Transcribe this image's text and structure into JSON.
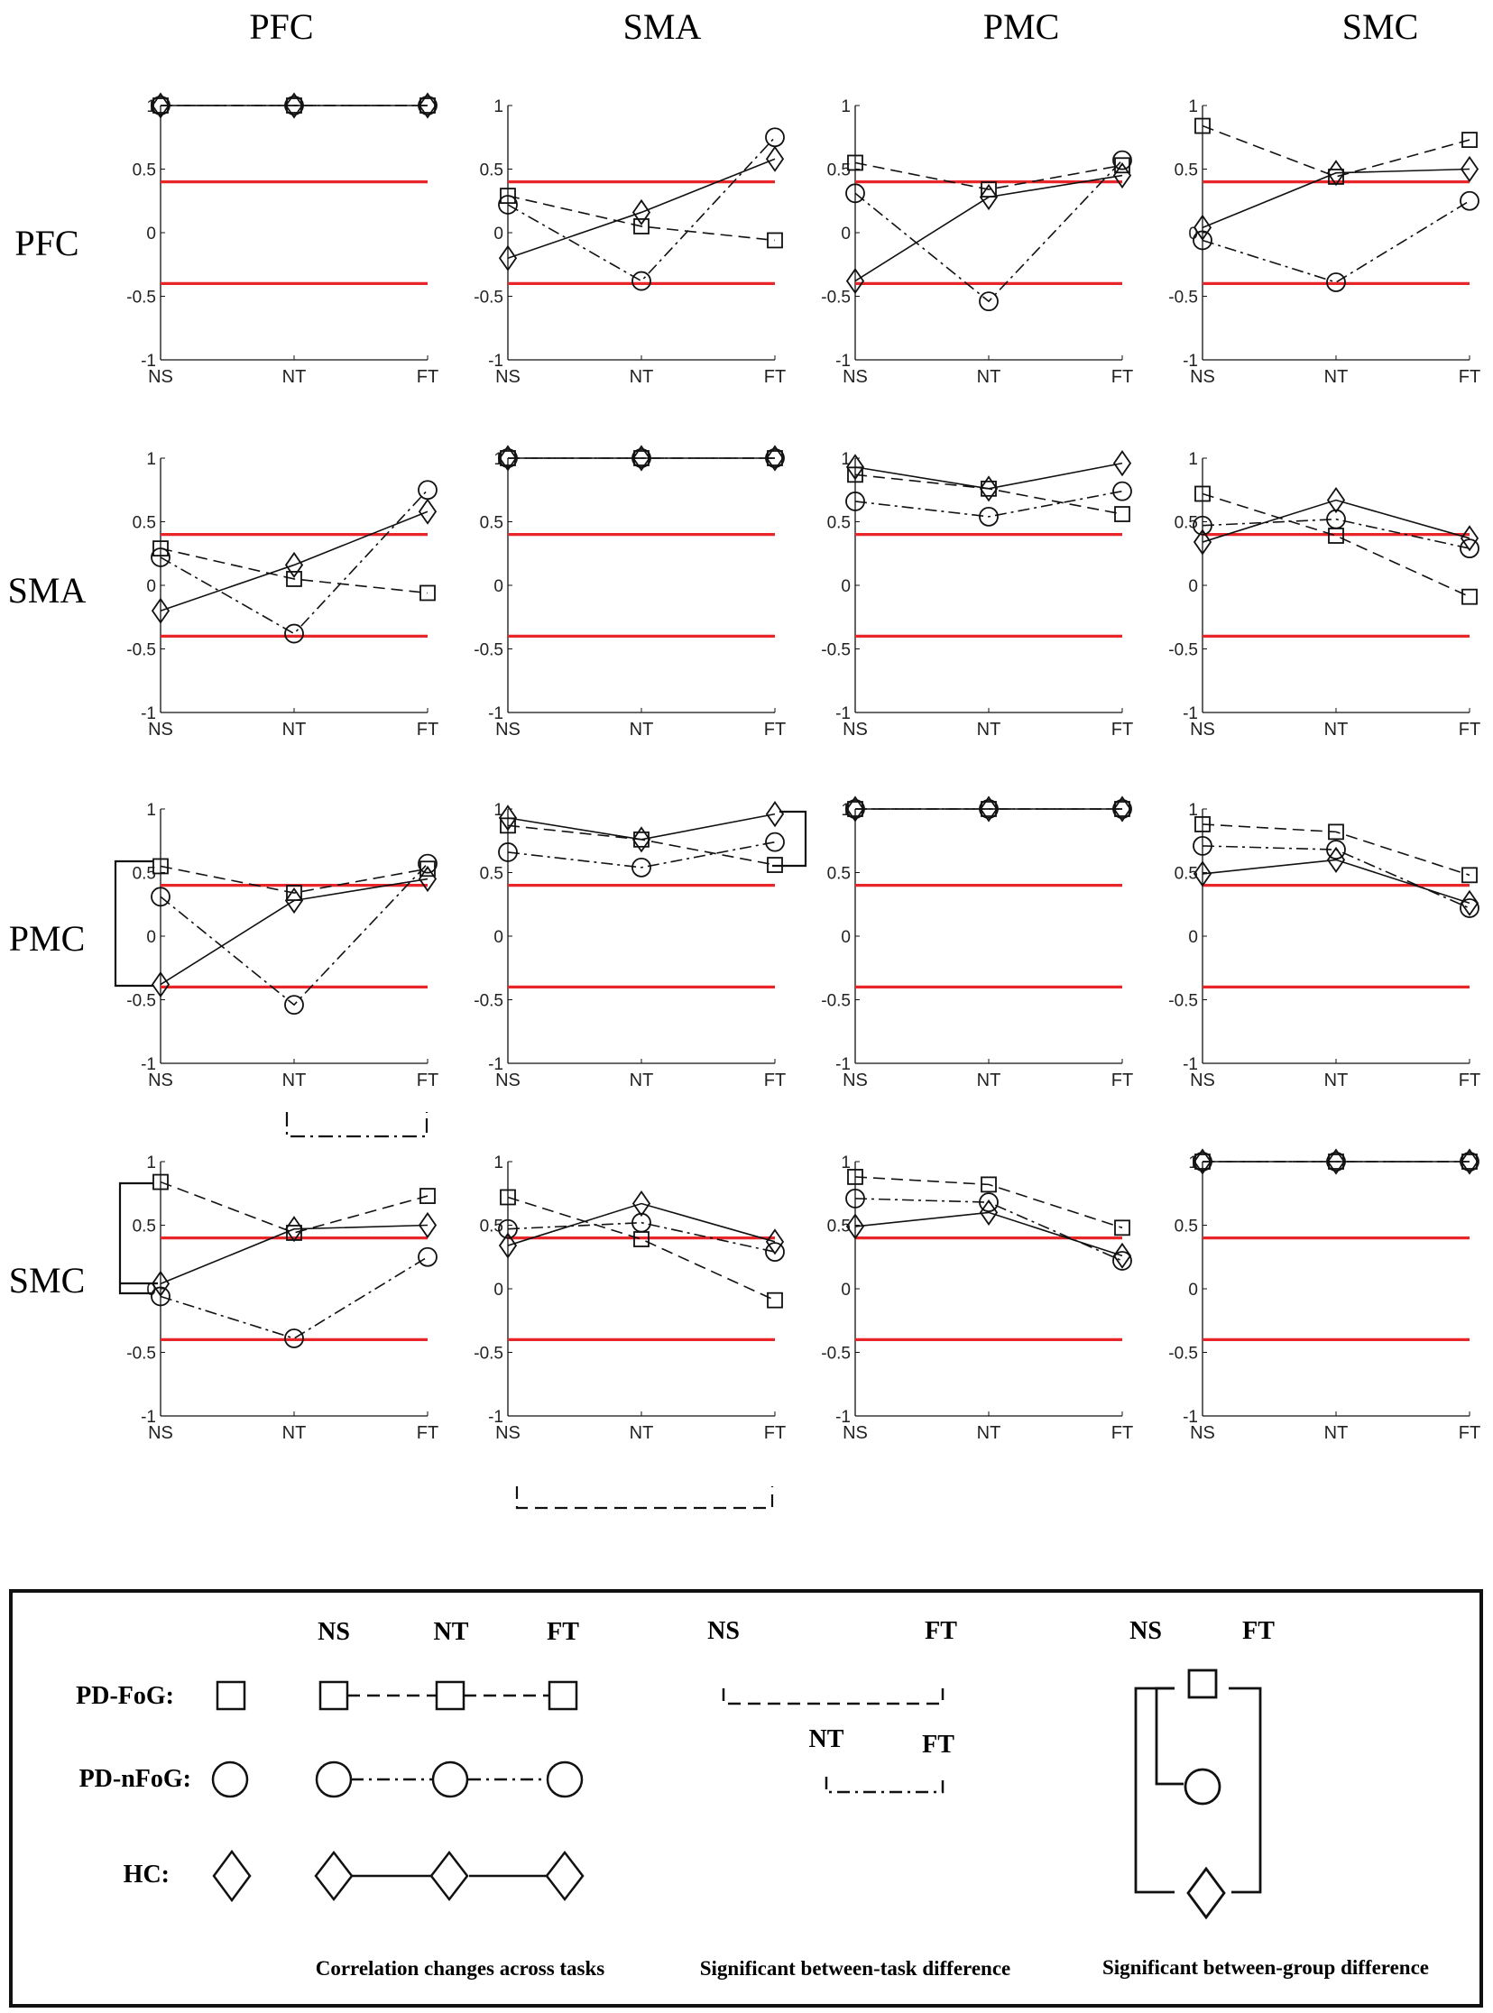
{
  "figure": {
    "col_labels": [
      "PFC",
      "SMA",
      "PMC",
      "SMC"
    ],
    "row_labels": [
      "PFC",
      "SMA",
      "PMC",
      "SMC"
    ]
  },
  "colors": {
    "threshold_line": "#e8262a",
    "ink": "#111111"
  },
  "chart_data": {
    "type": "line",
    "layout": "4x4 grid of line plots (row region vs column region)",
    "categories": [
      "NS",
      "NT",
      "FT"
    ],
    "ylim": [
      -1,
      1
    ],
    "yticks": [
      -1,
      -0.5,
      0,
      0.5,
      1
    ],
    "ytick_labels": [
      "-1",
      "-0.5",
      "0",
      "0.5",
      "1"
    ],
    "threshold_lines": [
      0.4,
      -0.4
    ],
    "series_styles": {
      "PD-FoG": {
        "marker": "square",
        "line": "dashed"
      },
      "PD-nFoG": {
        "marker": "circle",
        "line": "dashdot"
      },
      "HC": {
        "marker": "diamond",
        "line": "solid"
      }
    },
    "panels": [
      {
        "row": "PFC",
        "col": "PFC",
        "series": [
          {
            "name": "PD-FoG",
            "values": [
              1,
              1,
              1
            ]
          },
          {
            "name": "PD-nFoG",
            "values": [
              1,
              1,
              1
            ]
          },
          {
            "name": "HC",
            "values": [
              1,
              1,
              1
            ]
          }
        ]
      },
      {
        "row": "PFC",
        "col": "SMA",
        "series": [
          {
            "name": "PD-FoG",
            "values": [
              0.29,
              0.05,
              -0.06
            ]
          },
          {
            "name": "PD-nFoG",
            "values": [
              0.22,
              -0.38,
              0.75
            ]
          },
          {
            "name": "HC",
            "values": [
              -0.2,
              0.16,
              0.58
            ]
          }
        ]
      },
      {
        "row": "PFC",
        "col": "PMC",
        "series": [
          {
            "name": "PD-FoG",
            "values": [
              0.55,
              0.34,
              0.53
            ]
          },
          {
            "name": "PD-nFoG",
            "values": [
              0.31,
              -0.54,
              0.57
            ]
          },
          {
            "name": "HC",
            "values": [
              -0.38,
              0.28,
              0.45
            ]
          }
        ]
      },
      {
        "row": "PFC",
        "col": "SMC",
        "series": [
          {
            "name": "PD-FoG",
            "values": [
              0.84,
              0.44,
              0.73
            ]
          },
          {
            "name": "PD-nFoG",
            "values": [
              -0.06,
              -0.39,
              0.25
            ]
          },
          {
            "name": "HC",
            "values": [
              0.04,
              0.47,
              0.5
            ]
          }
        ]
      },
      {
        "row": "SMA",
        "col": "PFC",
        "series": [
          {
            "name": "PD-FoG",
            "values": [
              0.29,
              0.05,
              -0.06
            ]
          },
          {
            "name": "PD-nFoG",
            "values": [
              0.22,
              -0.38,
              0.75
            ]
          },
          {
            "name": "HC",
            "values": [
              -0.2,
              0.16,
              0.58
            ]
          }
        ]
      },
      {
        "row": "SMA",
        "col": "SMA",
        "series": [
          {
            "name": "PD-FoG",
            "values": [
              1,
              1,
              1
            ]
          },
          {
            "name": "PD-nFoG",
            "values": [
              1,
              1,
              1
            ]
          },
          {
            "name": "HC",
            "values": [
              1,
              1,
              1
            ]
          }
        ]
      },
      {
        "row": "SMA",
        "col": "PMC",
        "series": [
          {
            "name": "PD-FoG",
            "values": [
              0.87,
              0.76,
              0.56
            ]
          },
          {
            "name": "PD-nFoG",
            "values": [
              0.66,
              0.54,
              0.74
            ]
          },
          {
            "name": "HC",
            "values": [
              0.93,
              0.76,
              0.96
            ]
          }
        ]
      },
      {
        "row": "SMA",
        "col": "SMC",
        "series": [
          {
            "name": "PD-FoG",
            "values": [
              0.72,
              0.39,
              -0.09
            ]
          },
          {
            "name": "PD-nFoG",
            "values": [
              0.47,
              0.52,
              0.29
            ]
          },
          {
            "name": "HC",
            "values": [
              0.34,
              0.67,
              0.37
            ]
          }
        ]
      },
      {
        "row": "PMC",
        "col": "PFC",
        "series": [
          {
            "name": "PD-FoG",
            "values": [
              0.55,
              0.34,
              0.53
            ]
          },
          {
            "name": "PD-nFoG",
            "values": [
              0.31,
              -0.54,
              0.57
            ]
          },
          {
            "name": "HC",
            "values": [
              -0.38,
              0.28,
              0.45
            ]
          }
        ]
      },
      {
        "row": "PMC",
        "col": "SMA",
        "series": [
          {
            "name": "PD-FoG",
            "values": [
              0.87,
              0.76,
              0.56
            ]
          },
          {
            "name": "PD-nFoG",
            "values": [
              0.66,
              0.54,
              0.74
            ]
          },
          {
            "name": "HC",
            "values": [
              0.93,
              0.76,
              0.96
            ]
          }
        ]
      },
      {
        "row": "PMC",
        "col": "PMC",
        "series": [
          {
            "name": "PD-FoG",
            "values": [
              1,
              1,
              1
            ]
          },
          {
            "name": "PD-nFoG",
            "values": [
              1,
              1,
              1
            ]
          },
          {
            "name": "HC",
            "values": [
              1,
              1,
              1
            ]
          }
        ]
      },
      {
        "row": "PMC",
        "col": "SMC",
        "series": [
          {
            "name": "PD-FoG",
            "values": [
              0.88,
              0.82,
              0.48
            ]
          },
          {
            "name": "PD-nFoG",
            "values": [
              0.71,
              0.68,
              0.22
            ]
          },
          {
            "name": "HC",
            "values": [
              0.49,
              0.6,
              0.26
            ]
          }
        ]
      },
      {
        "row": "SMC",
        "col": "PFC",
        "series": [
          {
            "name": "PD-FoG",
            "values": [
              0.84,
              0.44,
              0.73
            ]
          },
          {
            "name": "PD-nFoG",
            "values": [
              -0.06,
              -0.39,
              0.25
            ]
          },
          {
            "name": "HC",
            "values": [
              0.04,
              0.47,
              0.5
            ]
          }
        ]
      },
      {
        "row": "SMC",
        "col": "SMA",
        "series": [
          {
            "name": "PD-FoG",
            "values": [
              0.72,
              0.39,
              -0.09
            ]
          },
          {
            "name": "PD-nFoG",
            "values": [
              0.47,
              0.52,
              0.29
            ]
          },
          {
            "name": "HC",
            "values": [
              0.34,
              0.67,
              0.37
            ]
          }
        ]
      },
      {
        "row": "SMC",
        "col": "PMC",
        "series": [
          {
            "name": "PD-FoG",
            "values": [
              0.88,
              0.82,
              0.48
            ]
          },
          {
            "name": "PD-nFoG",
            "values": [
              0.71,
              0.68,
              0.22
            ]
          },
          {
            "name": "HC",
            "values": [
              0.49,
              0.6,
              0.26
            ]
          }
        ]
      },
      {
        "row": "SMC",
        "col": "SMC",
        "series": [
          {
            "name": "PD-FoG",
            "values": [
              1,
              1,
              1
            ]
          },
          {
            "name": "PD-nFoG",
            "values": [
              1,
              1,
              1
            ]
          },
          {
            "name": "HC",
            "values": [
              1,
              1,
              1
            ]
          }
        ]
      }
    ],
    "significance_annotations": [
      {
        "kind": "between-task",
        "panel": "PMC-PFC",
        "from": "NT",
        "to": "FT",
        "line": "dashdot"
      },
      {
        "kind": "between-task",
        "panel": "SMC-SMA",
        "from": "NS",
        "to": "FT",
        "line": "dashed"
      },
      {
        "kind": "between-group",
        "panel": "PMC-PFC",
        "task": "NS",
        "groups": [
          "PD-FoG",
          "HC"
        ],
        "side": "left"
      },
      {
        "kind": "between-group",
        "panel": "PMC-SMA",
        "task": "FT",
        "groups": [
          "HC",
          "PD-FoG"
        ],
        "side": "right"
      },
      {
        "kind": "between-group",
        "panel": "SMC-PFC",
        "task": "NS",
        "groups": [
          "PD-FoG",
          "HC"
        ],
        "side": "left"
      }
    ]
  },
  "legend": {
    "groups": [
      "PD-FoG:",
      "PD-nFoG:",
      "HC:"
    ],
    "task_headers": [
      "NS",
      "NT",
      "FT"
    ],
    "between_task_top": [
      "NS",
      "FT"
    ],
    "between_task_bottom": [
      "NT",
      "FT"
    ],
    "between_group_headers": [
      "NS",
      "FT"
    ],
    "captions": [
      "Correlation changes across tasks",
      "Significant between-task difference",
      "Significant between-group difference"
    ]
  }
}
